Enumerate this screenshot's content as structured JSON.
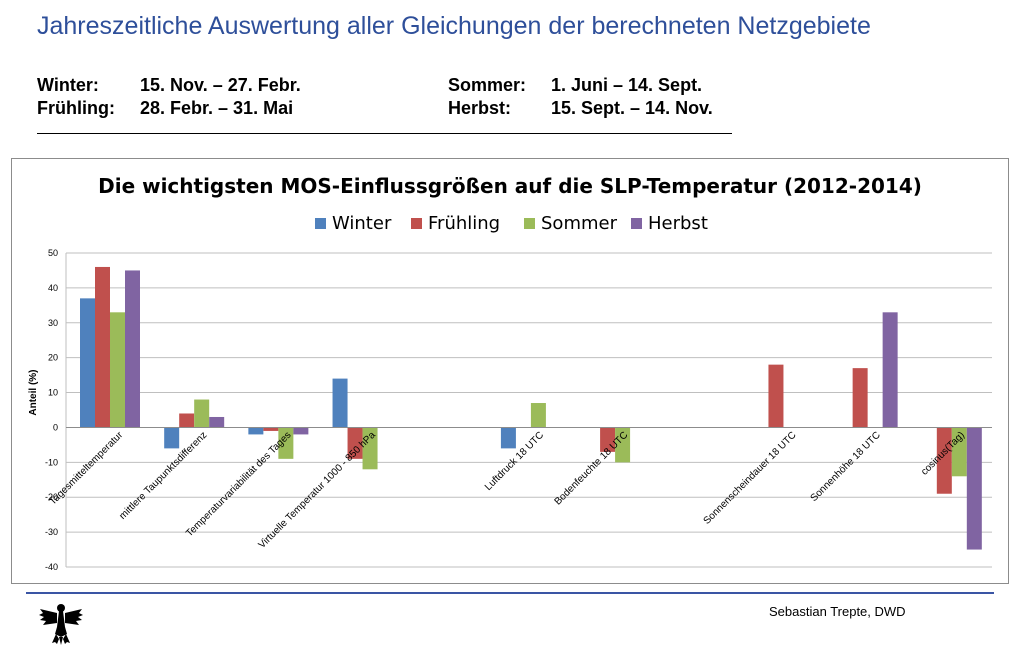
{
  "slide": {
    "title": "Jahreszeitliche Auswertung aller Gleichungen der berechneten Netzgebiete",
    "seasons": [
      {
        "name": "Winter:",
        "range": "15. Nov. – 27. Febr."
      },
      {
        "name": "Frühling:",
        "range": "28. Febr. – 31. Mai"
      },
      {
        "name": "Sommer:",
        "range": "1. Juni – 14. Sept."
      },
      {
        "name": "Herbst:",
        "range": "15. Sept. – 14. Nov."
      }
    ],
    "author": "Sebastian Trepte, DWD"
  },
  "chart_data": {
    "type": "bar",
    "title": "Die wichtigsten MOS-Einflussgrößen auf die SLP-Temperatur (2012-2014)",
    "ylabel": "Anteil (%)",
    "xlabel": "",
    "ylim": [
      -40,
      50
    ],
    "yticks": [
      -40,
      -30,
      -20,
      -10,
      0,
      10,
      20,
      30,
      40,
      50
    ],
    "grid": true,
    "legend_position": "top",
    "categories": [
      "Tagesmitteltemperatur",
      "mittlere Taupunktsdifferenz",
      "Temperaturvariabilität des Tages",
      "Virtuelle Temperatur 1000 - 850 hPa",
      "",
      "Luftdruck 18 UTC",
      "Bodenfeuchte 18 UTC",
      "",
      "Sonnenscheindauer 18 UTC",
      "Sonnenhöhe 18 UTC",
      "cosinus(Tag)"
    ],
    "series": [
      {
        "name": "Winter",
        "color": "#4f81bd",
        "values": [
          37,
          -6,
          -2,
          14,
          null,
          -6,
          null,
          null,
          null,
          null,
          null
        ]
      },
      {
        "name": "Frühling",
        "color": "#c0504d",
        "values": [
          46,
          4,
          -1,
          -9,
          null,
          null,
          -7,
          null,
          18,
          17,
          -19
        ]
      },
      {
        "name": "Sommer",
        "color": "#9bbb59",
        "values": [
          33,
          8,
          -9,
          -12,
          null,
          7,
          -10,
          null,
          null,
          null,
          -14
        ]
      },
      {
        "name": "Herbst",
        "color": "#8064a2",
        "values": [
          45,
          3,
          -2,
          null,
          null,
          null,
          null,
          null,
          null,
          33,
          -35
        ]
      }
    ]
  }
}
